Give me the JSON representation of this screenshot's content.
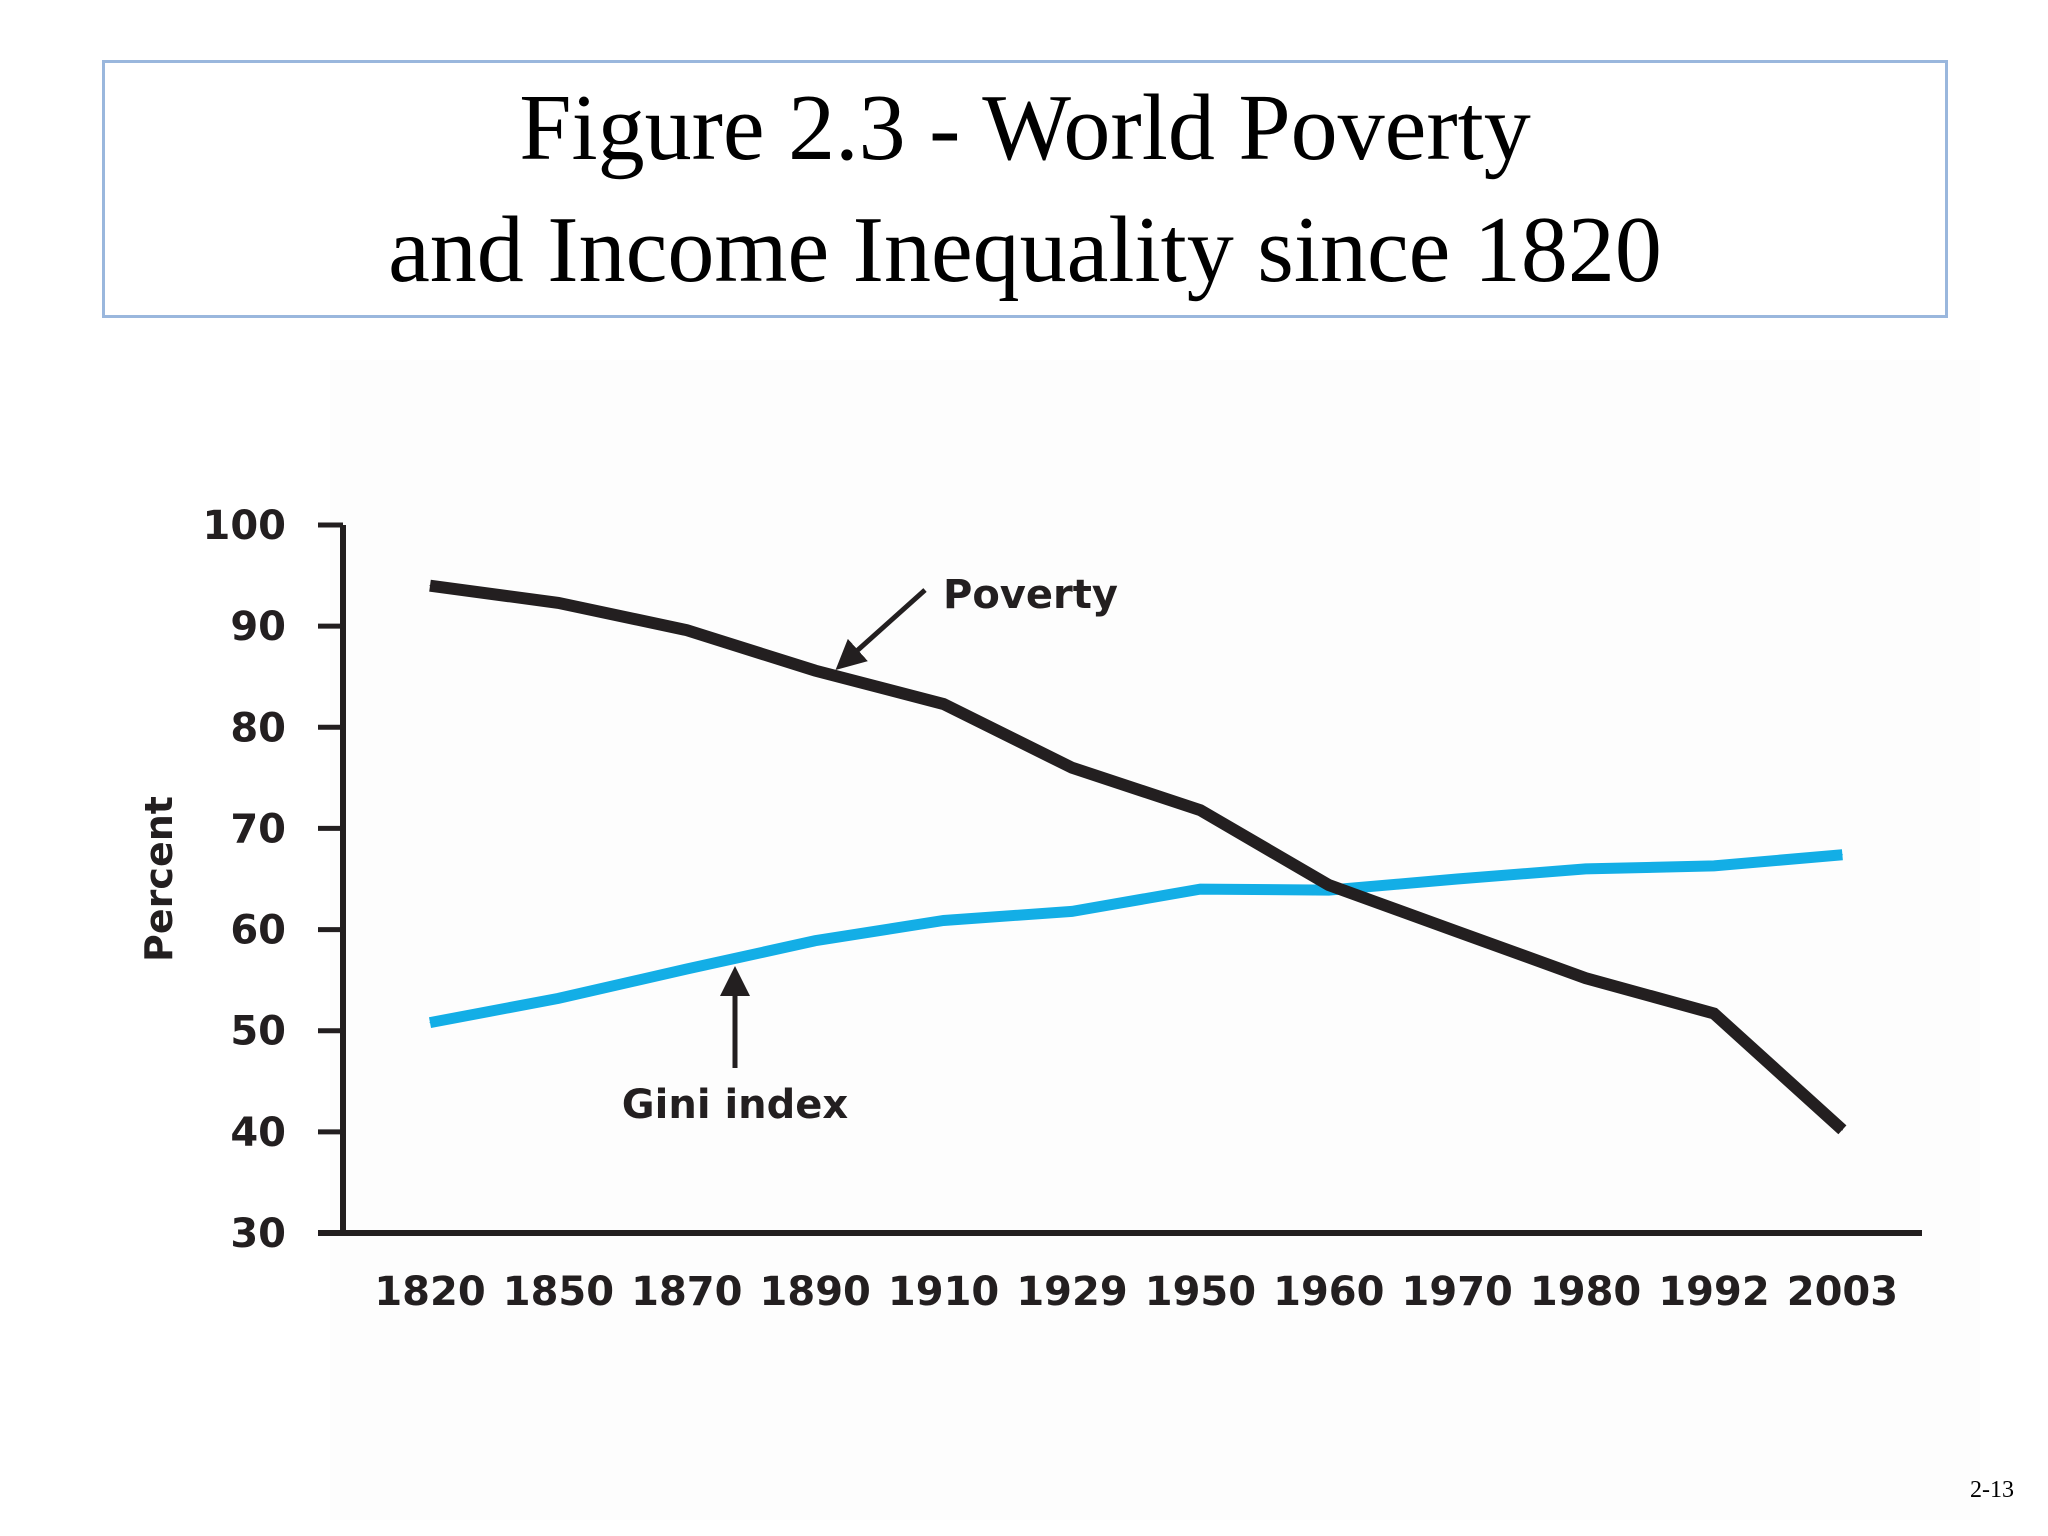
{
  "slide": {
    "title_line1": "Figure 2.3 - World Poverty",
    "title_line2": "and Income Inequality since 1820",
    "page_number": "2-13"
  },
  "colors": {
    "poverty": "#231f20",
    "gini": "#13aee6",
    "axis": "#231f20",
    "title_border": "#9ab7dd"
  },
  "chart_data": {
    "type": "line",
    "title": "",
    "xlabel": "",
    "ylabel": "Percent",
    "ylim": [
      30,
      100
    ],
    "yticks": [
      "30",
      "40",
      "50",
      "60",
      "70",
      "80",
      "90",
      "100"
    ],
    "categories": [
      "1820",
      "1850",
      "1870",
      "1890",
      "1910",
      "1929",
      "1950",
      "1960",
      "1970",
      "1980",
      "1992",
      "2003"
    ],
    "series": [
      {
        "name": "Poverty",
        "values": [
          94,
          92.3,
          89.6,
          85.6,
          82.3,
          76,
          71.8,
          64.4,
          59.8,
          55.2,
          51.7,
          40.2
        ]
      },
      {
        "name": "Gini index",
        "values": [
          50.8,
          53.2,
          56.1,
          58.9,
          60.9,
          61.8,
          64,
          63.9,
          65,
          66,
          66.3,
          67.4
        ]
      }
    ],
    "annotations": [
      "Poverty",
      "Gini index"
    ],
    "grid": false
  }
}
